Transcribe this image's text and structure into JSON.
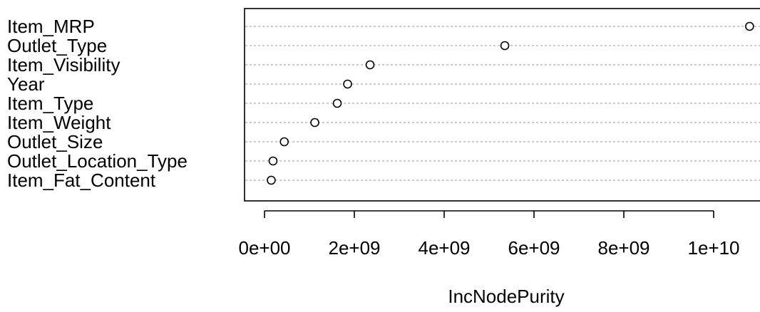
{
  "chart_data": {
    "type": "scatter",
    "style": "dotchart",
    "xlabel": "IncNodePurity",
    "categories": [
      "Item_MRP",
      "Outlet_Type",
      "Item_Visibility",
      "Year",
      "Item_Type",
      "Item_Weight",
      "Outlet_Size",
      "Outlet_Location_Type",
      "Item_Fat_Content"
    ],
    "values": [
      10800000000,
      5350000000,
      2350000000,
      1850000000,
      1620000000,
      1120000000,
      440000000,
      190000000,
      150000000
    ],
    "xlim": [
      -400000000,
      11000000000
    ],
    "xticks": [
      0,
      2000000000,
      4000000000,
      6000000000,
      8000000000,
      10000000000
    ],
    "xtick_labels": [
      "0e+00",
      "2e+09",
      "4e+09",
      "6e+09",
      "8e+09",
      "1e+10"
    ],
    "grid": "horizontal-dotted",
    "marker": "open-circle"
  }
}
